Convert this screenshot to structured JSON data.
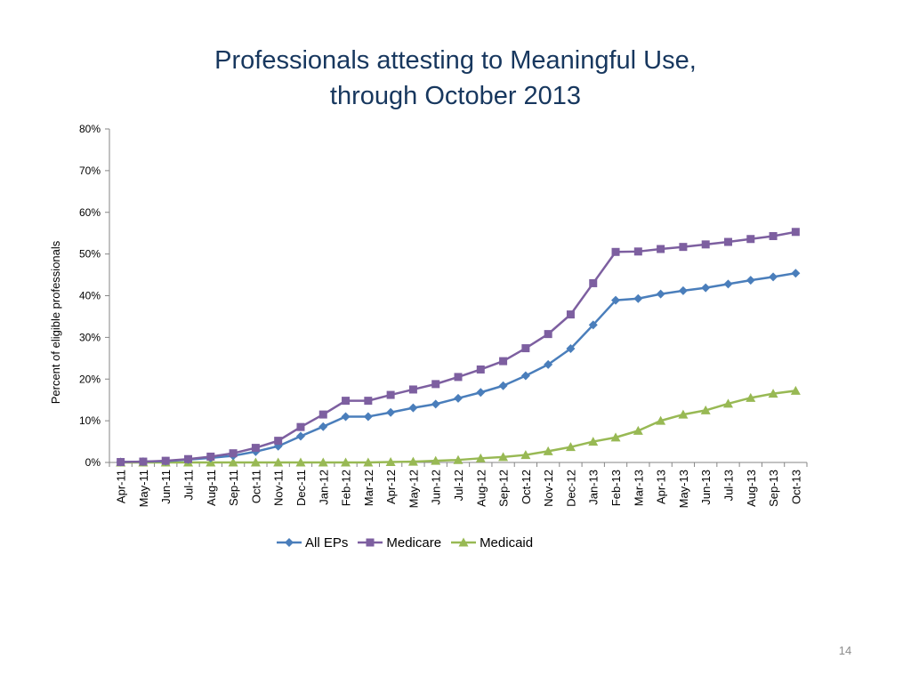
{
  "slide": {
    "title_line1": "Professionals attesting to Meaningful Use,",
    "title_line2": "through October 2013",
    "page_number": "14"
  },
  "chart_data": {
    "type": "line",
    "title": "Professionals attesting to Meaningful Use, through October 2013",
    "xlabel": "",
    "ylabel": "Percent of eligible professionals",
    "ylim": [
      0,
      0.8
    ],
    "ytick_values": [
      0,
      0.1,
      0.2,
      0.3,
      0.4,
      0.5,
      0.6,
      0.7,
      0.8
    ],
    "ytick_labels": [
      "0%",
      "10%",
      "20%",
      "30%",
      "40%",
      "50%",
      "60%",
      "70%",
      "80%"
    ],
    "grid": false,
    "legend_position": "bottom",
    "categories": [
      "Apr-11",
      "May-11",
      "Jun-11",
      "Jul-11",
      "Aug-11",
      "Sep-11",
      "Oct-11",
      "Nov-11",
      "Dec-11",
      "Jan-12",
      "Feb-12",
      "Mar-12",
      "Apr-12",
      "May-12",
      "Jun-12",
      "Jul-12",
      "Aug-12",
      "Sep-12",
      "Oct-12",
      "Nov-12",
      "Dec-12",
      "Jan-13",
      "Feb-13",
      "Mar-13",
      "Apr-13",
      "May-13",
      "Jun-13",
      "Jul-13",
      "Aug-13",
      "Sep-13",
      "Oct-13"
    ],
    "series": [
      {
        "name": "All EPs",
        "color": "#4a7ebb",
        "marker": "diamond",
        "values": [
          0.001,
          0.002,
          0.003,
          0.007,
          0.011,
          0.016,
          0.026,
          0.039,
          0.063,
          0.086,
          0.11,
          0.11,
          0.12,
          0.131,
          0.14,
          0.154,
          0.168,
          0.184,
          0.208,
          0.235,
          0.273,
          0.33,
          0.389,
          0.393,
          0.404,
          0.412,
          0.419,
          0.428,
          0.437,
          0.445,
          0.454
        ]
      },
      {
        "name": "Medicare",
        "color": "#7d5fa0",
        "marker": "square",
        "values": [
          0.001,
          0.002,
          0.004,
          0.008,
          0.014,
          0.022,
          0.035,
          0.052,
          0.085,
          0.115,
          0.148,
          0.148,
          0.162,
          0.175,
          0.188,
          0.205,
          0.223,
          0.243,
          0.274,
          0.308,
          0.355,
          0.43,
          0.505,
          0.506,
          0.512,
          0.517,
          0.523,
          0.529,
          0.536,
          0.543,
          0.553
        ]
      },
      {
        "name": "Medicaid",
        "color": "#98b954",
        "marker": "triangle",
        "values": [
          0,
          0,
          0,
          0,
          0,
          0,
          0,
          0,
          0,
          0,
          0,
          0,
          0.001,
          0.002,
          0.004,
          0.006,
          0.01,
          0.013,
          0.018,
          0.027,
          0.037,
          0.05,
          0.06,
          0.076,
          0.1,
          0.115,
          0.125,
          0.141,
          0.155,
          0.165,
          0.172
        ]
      }
    ]
  }
}
